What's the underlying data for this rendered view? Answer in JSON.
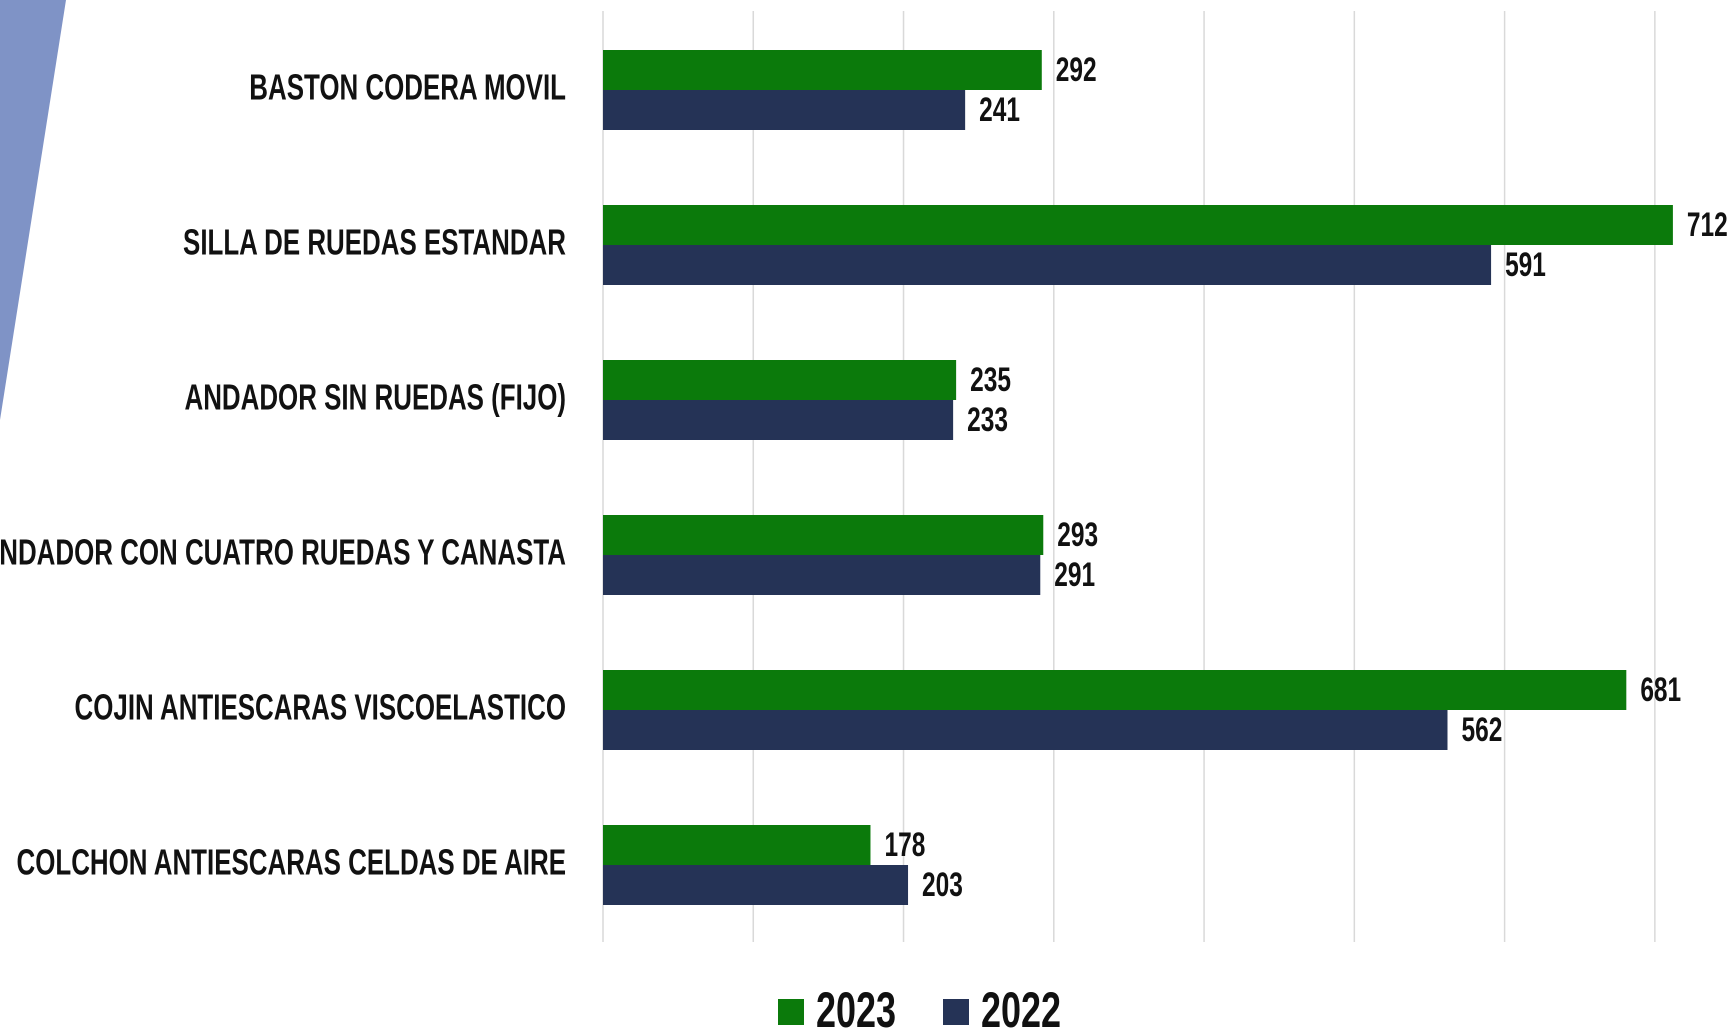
{
  "chart_data": {
    "type": "bar",
    "orientation": "horizontal",
    "categories": [
      "BASTON CODERA MOVIL",
      "SILLA DE RUEDAS ESTANDAR",
      "ANDADOR SIN RUEDAS (FIJO)",
      "ANDADOR CON CUATRO RUEDAS Y CANASTA",
      "COJIN ANTIESCARAS VISCOELASTICO",
      "COLCHON ANTIESCARAS CELDAS DE AIRE"
    ],
    "series": [
      {
        "name": "2023",
        "color": "#0b7a0b",
        "values": [
          292,
          712,
          235,
          293,
          681,
          178
        ]
      },
      {
        "name": "2022",
        "color": "#253356",
        "values": [
          241,
          591,
          233,
          291,
          562,
          203
        ]
      }
    ],
    "xlim": [
      0,
      750
    ],
    "xticks": [
      0,
      100,
      200,
      300,
      400,
      500,
      600,
      700
    ],
    "grid": true,
    "legend": "bottom"
  }
}
